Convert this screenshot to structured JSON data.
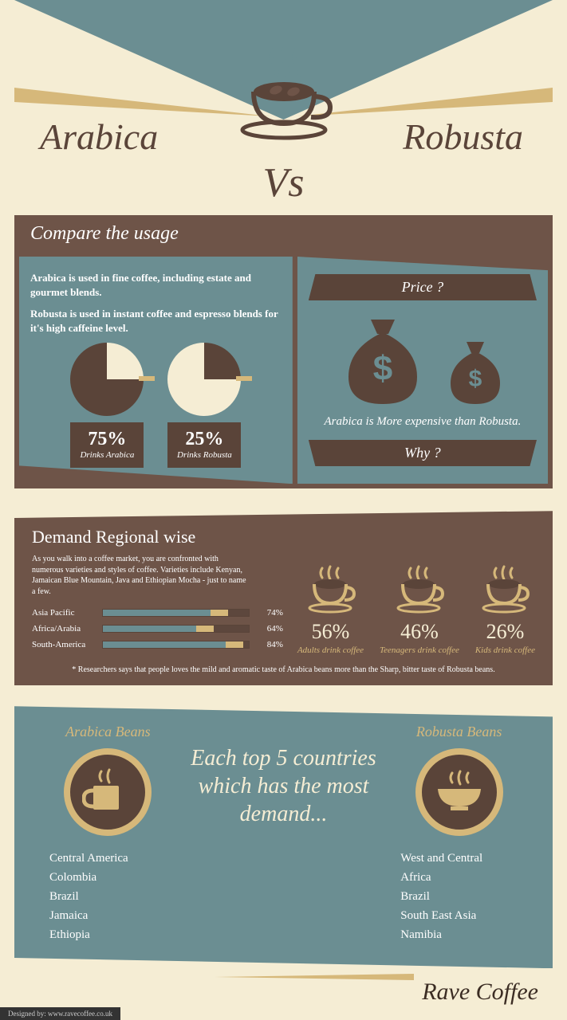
{
  "colors": {
    "cream": "#f5edd4",
    "teal": "#6b8e92",
    "brown_dark": "#5a4439",
    "brown_mid": "#6e5448",
    "tan": "#d6b87a",
    "white": "#ffffff"
  },
  "header": {
    "left_title": "Arabica",
    "right_title": "Robusta",
    "vs": "Vs"
  },
  "compare": {
    "title": "Compare the usage",
    "text_a": "Arabica is used in fine coffee, including estate and gourmet blends.",
    "text_b": "Robusta is used in instant coffee and espresso blends for it's high caffeine level.",
    "pies": {
      "arabica": {
        "pct": 75,
        "pct_label": "75%",
        "sub": "Drinks Arabica"
      },
      "robusta": {
        "pct": 25,
        "pct_label": "25%",
        "sub": "Drinks Robusta"
      }
    },
    "price_banner": "Price ?",
    "price_text": "Arabica is More expensive than Robusta.",
    "why_banner": "Why ?"
  },
  "demand": {
    "title": "Demand Regional wise",
    "desc": "As you walk into a coffee market, you are confronted with numerous varieties and styles of coffee. Varieties include Kenyan, Jamaican Blue Mountain, Java and Ethiopian Mocha - just to name a few.",
    "bars": [
      {
        "region": "Asia Pacific",
        "value": 74,
        "label": "74%"
      },
      {
        "region": "Africa/Arabia",
        "value": 64,
        "label": "64%"
      },
      {
        "region": "South-America",
        "value": 84,
        "label": "84%"
      }
    ],
    "cups": [
      {
        "pct": "56%",
        "label": "Adults drink coffee"
      },
      {
        "pct": "46%",
        "label": "Teenagers drink coffee"
      },
      {
        "pct": "26%",
        "label": "Kids drink coffee"
      }
    ],
    "footnote": "* Researchers says that people loves the mild and aromatic taste of Arabica beans more than the Sharp, bitter taste of Robusta beans."
  },
  "top5": {
    "arabica_title": "Arabica Beans",
    "robusta_title": "Robusta Beans",
    "mid_text": "Each top 5 countries which has the most demand...",
    "arabica_list": [
      "Central America",
      "Colombia",
      "Brazil",
      "Jamaica",
      "Ethiopia"
    ],
    "robusta_list": [
      "West and Central",
      "Africa",
      "Brazil",
      "South East Asia",
      "Namibia"
    ]
  },
  "footer": {
    "brand": "Rave Coffee",
    "designed": "Designed by: www.ravecoffee.co.uk"
  }
}
